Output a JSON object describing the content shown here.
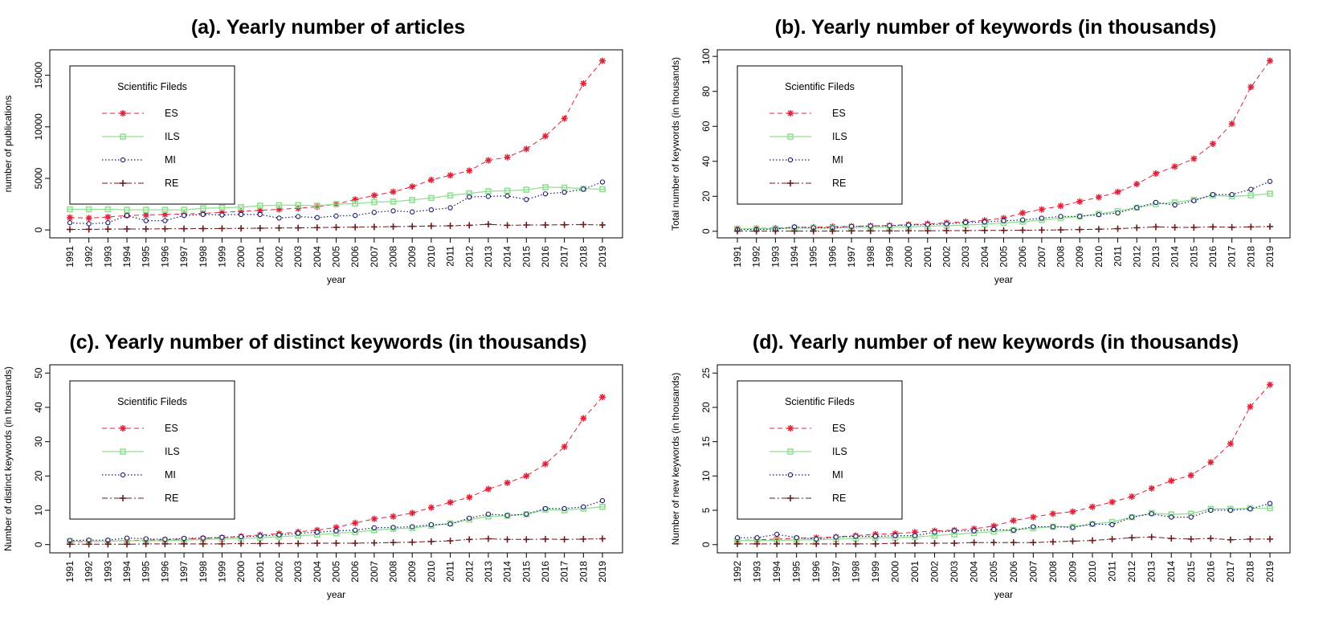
{
  "chart_data": [
    {
      "type": "line",
      "title": "(a). Yearly number of articles",
      "xlabel": "year",
      "ylabel": "number of publications",
      "x": [
        "1991",
        "1992",
        "1993",
        "1994",
        "1995",
        "1996",
        "1997",
        "1998",
        "1999",
        "2000",
        "2001",
        "2002",
        "2003",
        "2004",
        "2005",
        "2006",
        "2007",
        "2008",
        "2009",
        "2010",
        "2011",
        "2012",
        "2013",
        "2014",
        "2015",
        "2016",
        "2017",
        "2018",
        "2019"
      ],
      "ylim": [
        -300,
        17000
      ],
      "yticks": [
        0,
        5000,
        10000,
        15000
      ],
      "legend": {
        "title": "Scientific Fileds",
        "position": "top-left"
      },
      "series": [
        {
          "name": "ES",
          "color": "#e0213a",
          "values": [
            1200,
            1150,
            1250,
            1400,
            1450,
            1500,
            1550,
            1600,
            1700,
            1800,
            1900,
            2000,
            2100,
            2250,
            2500,
            2950,
            3350,
            3700,
            4200,
            4850,
            5300,
            5750,
            6750,
            7050,
            7850,
            9100,
            10800,
            14200,
            16400
          ]
        },
        {
          "name": "ILS",
          "color": "#8fe08f",
          "values": [
            2000,
            2000,
            2000,
            1950,
            1950,
            1950,
            1950,
            2100,
            2150,
            2200,
            2350,
            2400,
            2400,
            2350,
            2500,
            2550,
            2700,
            2750,
            2900,
            3100,
            3350,
            3550,
            3750,
            3800,
            3900,
            4150,
            4100,
            4000,
            3950
          ]
        },
        {
          "name": "MI",
          "color": "#1a1a6e",
          "values": [
            700,
            600,
            700,
            1400,
            900,
            900,
            1400,
            1500,
            1450,
            1500,
            1500,
            1150,
            1300,
            1200,
            1350,
            1400,
            1700,
            1850,
            1750,
            1950,
            2150,
            3200,
            3250,
            3300,
            2950,
            3500,
            3650,
            3950,
            4650
          ]
        },
        {
          "name": "RE",
          "color": "#6b1a1a",
          "values": [
            50,
            60,
            80,
            90,
            100,
            110,
            120,
            130,
            140,
            150,
            170,
            190,
            200,
            220,
            250,
            270,
            290,
            320,
            350,
            380,
            400,
            450,
            550,
            450,
            480,
            480,
            500,
            520,
            480
          ]
        }
      ]
    },
    {
      "type": "line",
      "title": "(b). Yearly number of keywords (in thousands)",
      "xlabel": "year",
      "ylabel": "Total number of  keywords (in thousands)",
      "x": [
        "1991",
        "1992",
        "1993",
        "1994",
        "1995",
        "1996",
        "1997",
        "1998",
        "1999",
        "2000",
        "2001",
        "2002",
        "2003",
        "2004",
        "2005",
        "2006",
        "2007",
        "2008",
        "2009",
        "2010",
        "2011",
        "2012",
        "2013",
        "2014",
        "2015",
        "2016",
        "2017",
        "2018",
        "2019"
      ],
      "ylim": [
        -1,
        101
      ],
      "yticks": [
        0,
        20,
        40,
        60,
        80,
        100
      ],
      "legend": {
        "title": "Scientific Fileds",
        "position": "top-left"
      },
      "series": [
        {
          "name": "ES",
          "color": "#e0213a",
          "values": [
            1.5,
            1.6,
            1.8,
            2.2,
            2.3,
            2.6,
            2.8,
            3.0,
            3.3,
            3.8,
            4.3,
            4.8,
            5.5,
            6.2,
            7.5,
            10.5,
            12.5,
            14.5,
            17.0,
            19.5,
            22.5,
            27.0,
            33.0,
            37.0,
            41.5,
            50.0,
            61.5,
            82.5,
            97.5
          ]
        },
        {
          "name": "ILS",
          "color": "#8fe08f",
          "values": [
            1.5,
            1.5,
            1.5,
            1.8,
            1.8,
            1.8,
            2.0,
            2.2,
            2.4,
            2.6,
            2.9,
            3.2,
            3.6,
            4.0,
            4.8,
            5.5,
            6.5,
            7.5,
            8.5,
            10.0,
            11.5,
            13.5,
            15.5,
            16.5,
            18.0,
            20.5,
            20.0,
            20.5,
            21.5
          ]
        },
        {
          "name": "MI",
          "color": "#1a1a6e",
          "values": [
            1.0,
            1.0,
            1.2,
            2.5,
            2.0,
            2.0,
            2.8,
            3.0,
            3.2,
            3.6,
            3.8,
            4.2,
            5.0,
            5.3,
            6.0,
            6.5,
            7.5,
            8.5,
            8.5,
            9.5,
            10.5,
            13.5,
            16.5,
            15.0,
            17.5,
            21.0,
            21.0,
            24.0,
            28.5
          ]
        },
        {
          "name": "RE",
          "color": "#6b1a1a",
          "values": [
            0.1,
            0.1,
            0.1,
            0.1,
            0.1,
            0.1,
            0.2,
            0.2,
            0.2,
            0.3,
            0.3,
            0.4,
            0.4,
            0.5,
            0.5,
            0.6,
            0.7,
            0.8,
            1.0,
            1.2,
            1.5,
            2.0,
            2.5,
            2.2,
            2.2,
            2.5,
            2.3,
            2.5,
            2.7
          ]
        }
      ]
    },
    {
      "type": "line",
      "title": "(c). Yearly number of distinct keywords (in thousands)",
      "xlabel": "year",
      "ylabel": "Number of distinct keywords (in thousands)",
      "x": [
        "1991",
        "1992",
        "1993",
        "1994",
        "1995",
        "1996",
        "1997",
        "1998",
        "1999",
        "2000",
        "2001",
        "2002",
        "2003",
        "2004",
        "2005",
        "2006",
        "2007",
        "2008",
        "2009",
        "2010",
        "2011",
        "2012",
        "2013",
        "2014",
        "2015",
        "2016",
        "2017",
        "2018",
        "2019"
      ],
      "ylim": [
        -1,
        51
      ],
      "yticks": [
        0,
        10,
        20,
        30,
        40,
        50
      ],
      "legend": {
        "title": "Scientific Fileds",
        "position": "top-left"
      },
      "series": [
        {
          "name": "ES",
          "color": "#e0213a",
          "values": [
            0.8,
            0.9,
            1.0,
            1.2,
            1.3,
            1.4,
            1.6,
            1.8,
            2.0,
            2.4,
            2.8,
            3.2,
            3.7,
            4.2,
            5.0,
            6.3,
            7.5,
            8.2,
            9.2,
            10.8,
            12.3,
            13.8,
            16.2,
            18.0,
            20.0,
            23.5,
            28.5,
            36.8,
            43.0
          ]
        },
        {
          "name": "ILS",
          "color": "#8fe08f",
          "values": [
            1.0,
            1.0,
            1.0,
            1.1,
            1.1,
            1.1,
            1.3,
            1.5,
            1.6,
            1.8,
            2.0,
            2.3,
            2.6,
            2.9,
            3.3,
            3.6,
            4.2,
            4.6,
            4.8,
            5.5,
            6.2,
            7.3,
            8.2,
            8.4,
            8.8,
            10.2,
            10.0,
            10.5,
            11.0
          ]
        },
        {
          "name": "MI",
          "color": "#1a1a6e",
          "values": [
            1.2,
            1.3,
            1.3,
            1.9,
            1.7,
            1.5,
            1.8,
            1.9,
            2.1,
            2.3,
            2.5,
            2.8,
            3.3,
            3.6,
            4.0,
            4.2,
            4.9,
            5.0,
            5.2,
            5.8,
            6.0,
            7.7,
            8.9,
            8.5,
            8.9,
            10.5,
            10.5,
            11.0,
            12.8
          ]
        },
        {
          "name": "RE",
          "color": "#6b1a1a",
          "values": [
            0.1,
            0.1,
            0.1,
            0.1,
            0.2,
            0.2,
            0.2,
            0.2,
            0.2,
            0.3,
            0.3,
            0.3,
            0.3,
            0.4,
            0.4,
            0.4,
            0.5,
            0.6,
            0.7,
            0.9,
            1.1,
            1.5,
            1.7,
            1.5,
            1.5,
            1.6,
            1.5,
            1.6,
            1.7
          ]
        }
      ]
    },
    {
      "type": "line",
      "title": "(d). Yearly number of new keywords (in thousands)",
      "xlabel": "year",
      "ylabel": "Number of new keywords (in thousands)",
      "x": [
        "1992",
        "1993",
        "1994",
        "1995",
        "1996",
        "1997",
        "1998",
        "1999",
        "2000",
        "2001",
        "2002",
        "2003",
        "2004",
        "2005",
        "2006",
        "2007",
        "2008",
        "2009",
        "2010",
        "2011",
        "2012",
        "2013",
        "2014",
        "2015",
        "2016",
        "2017",
        "2018",
        "2019"
      ],
      "ylim": [
        -0.5,
        25.5
      ],
      "yticks": [
        0,
        5,
        10,
        15,
        20,
        25
      ],
      "legend": {
        "title": "Scientific Fileds",
        "position": "top-left"
      },
      "series": [
        {
          "name": "ES",
          "color": "#e0213a",
          "values": [
            0.6,
            0.7,
            0.8,
            0.9,
            1.0,
            1.1,
            1.3,
            1.5,
            1.6,
            1.8,
            2.0,
            2.1,
            2.3,
            2.7,
            3.5,
            4.0,
            4.5,
            4.8,
            5.5,
            6.2,
            7.0,
            8.2,
            9.3,
            10.1,
            12.0,
            14.7,
            20.1,
            23.3
          ]
        },
        {
          "name": "ILS",
          "color": "#8fe08f",
          "values": [
            0.6,
            0.6,
            0.6,
            0.7,
            0.7,
            0.8,
            0.9,
            1.0,
            1.0,
            1.1,
            1.3,
            1.5,
            1.7,
            1.9,
            2.1,
            2.4,
            2.6,
            2.6,
            3.0,
            3.3,
            4.0,
            4.6,
            4.4,
            4.5,
            5.2,
            5.2,
            5.3,
            5.3
          ]
        },
        {
          "name": "MI",
          "color": "#1a1a6e",
          "values": [
            1.0,
            1.0,
            1.5,
            1.0,
            0.8,
            1.1,
            1.2,
            1.2,
            1.3,
            1.3,
            1.8,
            2.0,
            2.0,
            2.2,
            2.1,
            2.6,
            2.6,
            2.5,
            3.0,
            2.9,
            4.0,
            4.5,
            4.0,
            4.0,
            5.0,
            5.0,
            5.2,
            6.0
          ]
        },
        {
          "name": "RE",
          "color": "#6b1a1a",
          "values": [
            0.1,
            0.1,
            0.1,
            0.1,
            0.1,
            0.1,
            0.1,
            0.1,
            0.2,
            0.2,
            0.2,
            0.2,
            0.3,
            0.3,
            0.3,
            0.3,
            0.4,
            0.5,
            0.6,
            0.8,
            1.0,
            1.1,
            0.9,
            0.8,
            0.9,
            0.7,
            0.8,
            0.8
          ]
        }
      ]
    }
  ]
}
